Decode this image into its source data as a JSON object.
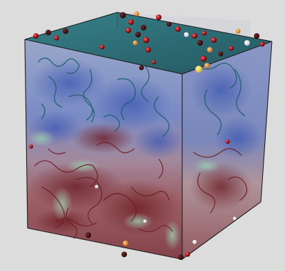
{
  "image": {
    "background": "#dcdcdc",
    "colors": {
      "top_face": "#1f5d66",
      "top_face_light": "#2f7d86",
      "upper_volume_blue": "#4d6fb6",
      "lower_volume_red": "#8a3e45",
      "teal_filaments": "#1b5e67",
      "red_filaments": "#6e1f22",
      "green_wisps": "#7ab89a",
      "frame_line": "#1d1d1d",
      "particle_red": "#b0151c",
      "particle_dark": "#3a0a0a",
      "particle_orange": "#e07a1a",
      "particle_yellow": "#f0d43a",
      "particle_white": "#f2f2f2"
    }
  }
}
